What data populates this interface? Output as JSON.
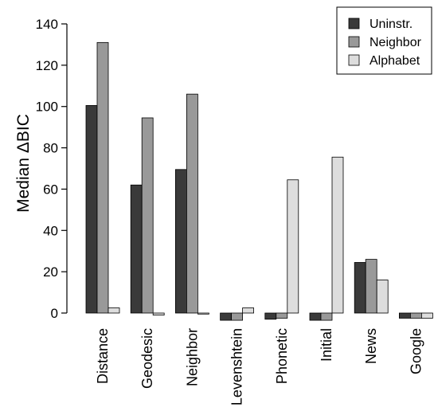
{
  "chart_data": {
    "type": "bar",
    "title": "",
    "xlabel": "",
    "ylabel": "Median ΔBIC",
    "ylim": [
      -5,
      140
    ],
    "yticks": [
      0,
      20,
      40,
      60,
      80,
      100,
      120,
      140
    ],
    "categories": [
      "Distance",
      "Geodesic",
      "Neighbor",
      "Levenshtein",
      "Phonetic",
      "Initial",
      "News",
      "Google"
    ],
    "series": [
      {
        "name": "Uninstr.",
        "color": "#3a3a3a",
        "values": [
          100.5,
          62,
          69.5,
          -3.5,
          -3,
          -3.5,
          24.5,
          -2.5
        ]
      },
      {
        "name": "Neighbor",
        "color": "#999999",
        "values": [
          131,
          94.5,
          106,
          -3.5,
          -2.5,
          -3.5,
          26,
          -2.5
        ]
      },
      {
        "name": "Alphabet",
        "color": "#dddddd",
        "values": [
          2.5,
          -1,
          -0.5,
          2.5,
          64.5,
          75.5,
          16,
          -2.5
        ]
      }
    ],
    "legend": "top-right",
    "grid": false
  }
}
